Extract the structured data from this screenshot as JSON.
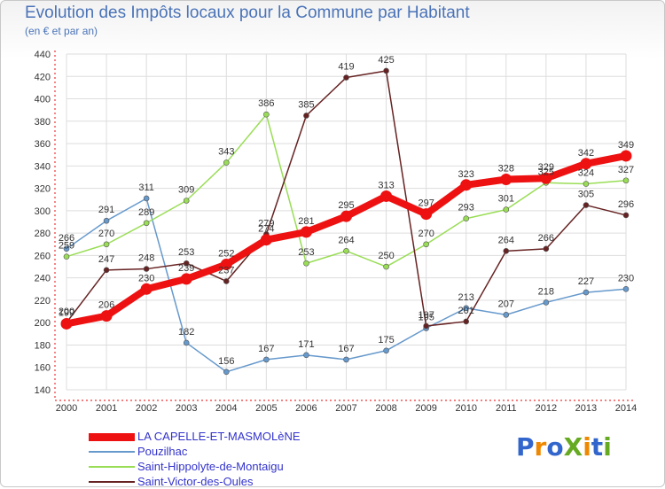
{
  "chart_data": {
    "type": "line",
    "title": "Evolution des Impôts locaux pour la Commune par Habitant",
    "subtitle": "(en € et par an)",
    "x": [
      "2000",
      "2001",
      "2002",
      "2003",
      "2004",
      "2005",
      "2006",
      "2007",
      "2008",
      "2009",
      "2010",
      "2011",
      "2012",
      "2013",
      "2014"
    ],
    "ylim": [
      140,
      440
    ],
    "yticks": [
      "140",
      "160",
      "180",
      "200",
      "220",
      "240",
      "260",
      "280",
      "300",
      "320",
      "340",
      "360",
      "380",
      "400",
      "420",
      "440"
    ],
    "series": [
      {
        "name": "LA CAPELLE-ET-MASMOLèNE",
        "color": "#ee1111",
        "values": [
          199,
          206,
          230,
          239,
          252,
          274,
          281,
          295,
          313,
          297,
          323,
          328,
          329,
          342,
          349
        ],
        "labels": [
          "199",
          "206",
          "230",
          "239",
          "252",
          "274",
          "281",
          "295",
          "313",
          "297",
          "323",
          "328",
          "329",
          "342",
          "349"
        ]
      },
      {
        "name": "Pouzilhac",
        "color": "#6699cc",
        "values": [
          266,
          291,
          311,
          182,
          156,
          167,
          171,
          167,
          175,
          195,
          213,
          207,
          218,
          227,
          230
        ],
        "labels": [
          "266",
          "291",
          "311",
          "182",
          "156",
          "167",
          "171",
          "167",
          "175",
          "195",
          "213",
          "207",
          "218",
          "227",
          "230"
        ]
      },
      {
        "name": "Saint-Hippolyte-de-Montaigu",
        "color": "#99dd55",
        "values": [
          259,
          270,
          289,
          309,
          343,
          386,
          253,
          264,
          250,
          270,
          293,
          301,
          325,
          324,
          327
        ],
        "labels": [
          "259",
          "270",
          "289",
          "309",
          "343",
          "386",
          "253",
          "264",
          "250",
          "270",
          "293",
          "301",
          "325",
          "324",
          "327"
        ]
      },
      {
        "name": "Saint-Victor-des-Oules",
        "color": "#662222",
        "values": [
          200,
          247,
          248,
          253,
          237,
          279,
          385,
          419,
          425,
          197,
          201,
          264,
          266,
          305,
          296
        ],
        "labels": [
          "200",
          "247",
          "248",
          "253",
          "237",
          "279",
          "385",
          "419",
          "425",
          "197",
          "201",
          "264",
          "266",
          "305",
          "296"
        ]
      }
    ]
  },
  "logo": {
    "text": "ProXiti",
    "letters": [
      "P",
      "r",
      "o",
      "X",
      "i",
      "t",
      "i"
    ],
    "colors": [
      "#3366cc",
      "#ee8800",
      "#3366cc",
      "#66aa22",
      "#ee8800",
      "#3366cc",
      "#66aa22"
    ]
  }
}
